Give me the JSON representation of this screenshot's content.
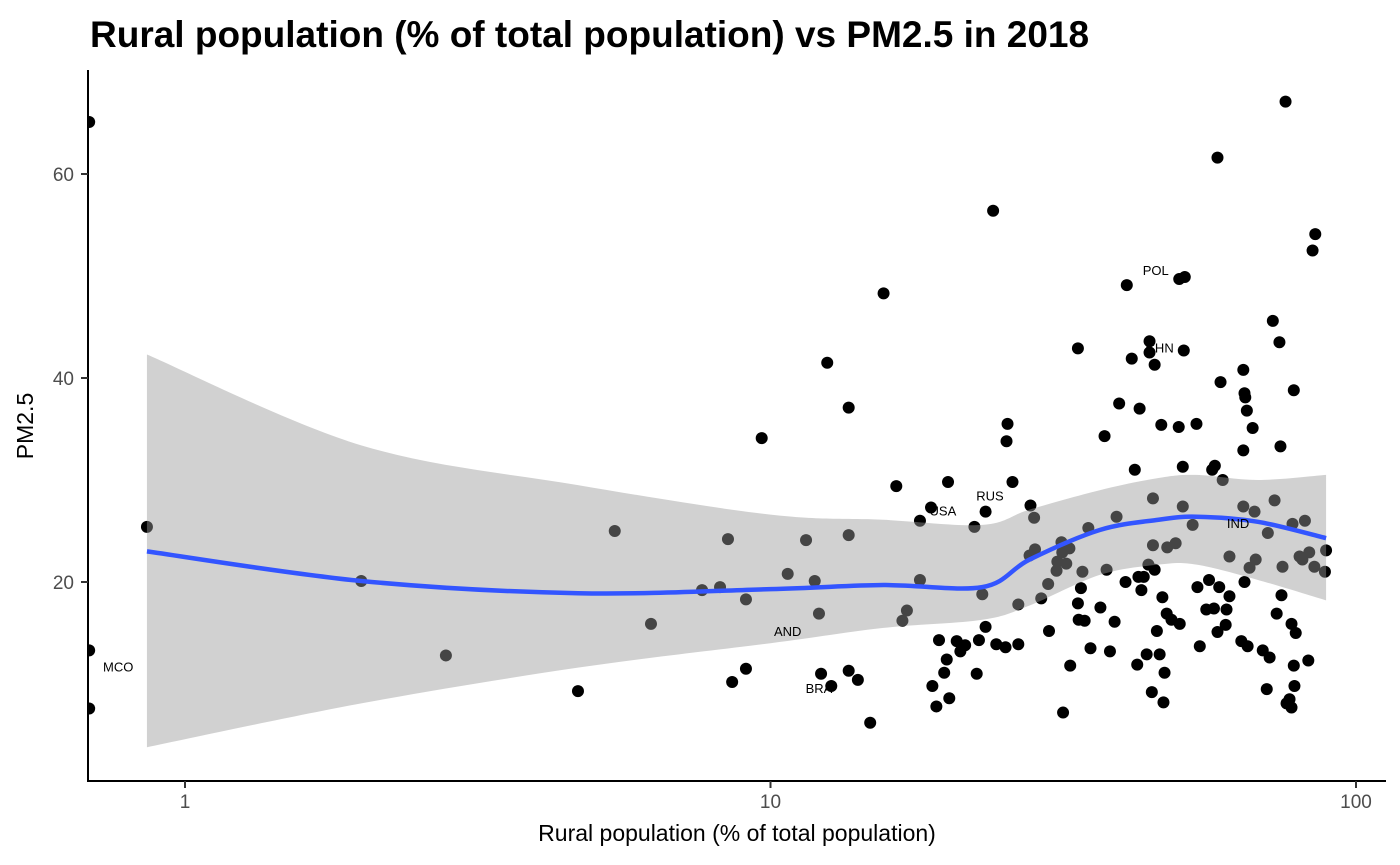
{
  "chart_data": {
    "type": "scatter",
    "title": "Rural population (% of total population) vs PM2.5 in 2018",
    "xlabel": "Rural population (% of total population)",
    "ylabel": "PM2.5",
    "x_scale": "log10",
    "xlim": [
      0.686,
      105
    ],
    "ylim": [
      0.5,
      70
    ],
    "x_ticks": [
      {
        "value": 1,
        "label": "1"
      },
      {
        "value": 10,
        "label": "10"
      },
      {
        "value": 100,
        "label": "100"
      }
    ],
    "y_ticks": [
      {
        "value": 20,
        "label": "20"
      },
      {
        "value": 40,
        "label": "40"
      },
      {
        "value": 60,
        "label": "60"
      }
    ],
    "grid": false,
    "colors": {
      "points": "#000000",
      "smooth_line": "#3355ff",
      "ribbon": "#999999"
    },
    "points": [
      [
        0.686,
        65.1
      ],
      [
        0.686,
        13.3
      ],
      [
        0.686,
        7.6
      ],
      [
        0.861,
        25.4
      ],
      [
        2.0,
        20.1
      ],
      [
        2.79,
        12.8
      ],
      [
        4.69,
        9.3
      ],
      [
        5.42,
        25.0
      ],
      [
        6.25,
        15.9
      ],
      [
        7.64,
        19.2
      ],
      [
        8.2,
        19.5
      ],
      [
        8.46,
        24.2
      ],
      [
        8.6,
        10.2
      ],
      [
        9.08,
        18.3
      ],
      [
        9.08,
        11.5
      ],
      [
        9.66,
        34.1
      ],
      [
        10.7,
        20.8
      ],
      [
        11.5,
        24.1
      ],
      [
        11.9,
        20.1
      ],
      [
        12.1,
        16.9
      ],
      [
        12.2,
        11.0
      ],
      [
        12.5,
        41.5
      ],
      [
        12.7,
        9.8
      ],
      [
        13.6,
        37.1
      ],
      [
        13.6,
        24.6
      ],
      [
        13.6,
        11.3
      ],
      [
        14.1,
        10.4
      ],
      [
        14.8,
        6.2
      ],
      [
        15.6,
        48.3
      ],
      [
        16.4,
        29.4
      ],
      [
        16.8,
        16.2
      ],
      [
        17.1,
        17.2
      ],
      [
        18.0,
        26.0
      ],
      [
        18.0,
        20.2
      ],
      [
        18.8,
        27.3
      ],
      [
        18.9,
        9.8
      ],
      [
        19.2,
        7.8
      ],
      [
        19.4,
        14.3
      ],
      [
        19.8,
        11.1
      ],
      [
        20.0,
        12.4
      ],
      [
        20.1,
        29.8
      ],
      [
        20.2,
        8.6
      ],
      [
        20.8,
        14.2
      ],
      [
        21.1,
        13.2
      ],
      [
        21.5,
        13.8
      ],
      [
        22.3,
        25.4
      ],
      [
        22.5,
        11.0
      ],
      [
        22.7,
        14.3
      ],
      [
        23.0,
        18.8
      ],
      [
        23.3,
        26.9
      ],
      [
        23.3,
        15.6
      ],
      [
        24.0,
        56.4
      ],
      [
        24.3,
        13.9
      ],
      [
        25.2,
        13.6
      ],
      [
        25.4,
        35.5
      ],
      [
        25.3,
        33.8
      ],
      [
        25.9,
        29.8
      ],
      [
        26.5,
        13.9
      ],
      [
        26.5,
        17.8
      ],
      [
        27.7,
        22.6
      ],
      [
        27.8,
        27.5
      ],
      [
        28.2,
        26.3
      ],
      [
        28.3,
        23.2
      ],
      [
        29.0,
        18.4
      ],
      [
        29.9,
        15.2
      ],
      [
        29.8,
        19.8
      ],
      [
        30.9,
        22.0
      ],
      [
        30.8,
        21.1
      ],
      [
        31.4,
        23.9
      ],
      [
        31.5,
        22.9
      ],
      [
        31.6,
        7.2
      ],
      [
        32.0,
        21.8
      ],
      [
        32.4,
        23.3
      ],
      [
        32.5,
        11.8
      ],
      [
        33.5,
        42.9
      ],
      [
        33.5,
        17.9
      ],
      [
        33.6,
        16.3
      ],
      [
        33.9,
        19.4
      ],
      [
        34.1,
        21.0
      ],
      [
        34.4,
        16.2
      ],
      [
        34.9,
        25.3
      ],
      [
        35.2,
        13.5
      ],
      [
        36.6,
        17.5
      ],
      [
        37.2,
        34.3
      ],
      [
        37.5,
        21.2
      ],
      [
        38.0,
        13.2
      ],
      [
        38.7,
        16.1
      ],
      [
        39.0,
        26.4
      ],
      [
        39.4,
        37.5
      ],
      [
        40.4,
        20.0
      ],
      [
        40.6,
        49.1
      ],
      [
        41.4,
        41.9
      ],
      [
        41.9,
        31.0
      ],
      [
        42.3,
        11.9
      ],
      [
        42.7,
        37.0
      ],
      [
        42.5,
        20.5
      ],
      [
        43.0,
        19.2
      ],
      [
        43.4,
        20.5
      ],
      [
        43.9,
        12.9
      ],
      [
        44.2,
        21.7
      ],
      [
        44.4,
        42.5
      ],
      [
        44.4,
        43.6
      ],
      [
        44.8,
        9.2
      ],
      [
        45.0,
        23.6
      ],
      [
        45.0,
        28.2
      ],
      [
        45.3,
        21.2
      ],
      [
        45.3,
        41.3
      ],
      [
        45.7,
        15.2
      ],
      [
        46.2,
        12.9
      ],
      [
        46.5,
        35.4
      ],
      [
        46.7,
        18.5
      ],
      [
        46.9,
        8.2
      ],
      [
        47.1,
        11.1
      ],
      [
        47.5,
        16.9
      ],
      [
        47.6,
        23.4
      ],
      [
        48.4,
        16.3
      ],
      [
        49.2,
        23.8
      ],
      [
        49.8,
        35.2
      ],
      [
        50.0,
        15.9
      ],
      [
        49.9,
        49.7
      ],
      [
        50.6,
        31.3
      ],
      [
        50.6,
        27.4
      ],
      [
        51.0,
        49.9
      ],
      [
        50.8,
        42.7
      ],
      [
        52.6,
        25.6
      ],
      [
        53.4,
        35.5
      ],
      [
        53.6,
        19.5
      ],
      [
        54.1,
        13.7
      ],
      [
        55.5,
        17.3
      ],
      [
        56.1,
        20.2
      ],
      [
        56.8,
        31.0
      ],
      [
        57.2,
        17.4
      ],
      [
        57.4,
        31.4
      ],
      [
        58.0,
        61.6
      ],
      [
        58.0,
        15.1
      ],
      [
        58.4,
        19.5
      ],
      [
        58.7,
        39.6
      ],
      [
        59.2,
        30.0
      ],
      [
        59.9,
        15.8
      ],
      [
        60.1,
        17.3
      ],
      [
        60.8,
        18.6
      ],
      [
        60.8,
        22.5
      ],
      [
        63.7,
        14.2
      ],
      [
        64.2,
        40.8
      ],
      [
        64.2,
        32.9
      ],
      [
        64.2,
        27.4
      ],
      [
        64.5,
        20.0
      ],
      [
        64.5,
        38.5
      ],
      [
        64.7,
        38.1
      ],
      [
        65.1,
        36.8
      ],
      [
        65.3,
        13.7
      ],
      [
        65.8,
        21.4
      ],
      [
        66.6,
        35.1
      ],
      [
        67.1,
        26.9
      ],
      [
        67.4,
        22.2
      ],
      [
        69.3,
        13.3
      ],
      [
        70.4,
        9.5
      ],
      [
        70.7,
        24.8
      ],
      [
        71.2,
        12.6
      ],
      [
        72.1,
        45.6
      ],
      [
        72.6,
        28.0
      ],
      [
        73.2,
        16.9
      ],
      [
        74.0,
        43.5
      ],
      [
        74.3,
        33.3
      ],
      [
        74.6,
        18.7
      ],
      [
        74.9,
        21.5
      ],
      [
        75.8,
        67.1
      ],
      [
        76.1,
        8.1
      ],
      [
        77.0,
        8.5
      ],
      [
        77.6,
        7.7
      ],
      [
        77.6,
        15.9
      ],
      [
        77.9,
        25.7
      ],
      [
        78.3,
        38.8
      ],
      [
        78.3,
        11.8
      ],
      [
        78.5,
        9.8
      ],
      [
        78.9,
        15.0
      ],
      [
        80.1,
        22.5
      ],
      [
        81.0,
        22.2
      ],
      [
        81.8,
        26.0
      ],
      [
        82.9,
        12.3
      ],
      [
        83.2,
        22.9
      ],
      [
        84.3,
        52.5
      ],
      [
        84.9,
        21.5
      ],
      [
        85.2,
        54.1
      ],
      [
        88.9,
        23.1
      ],
      [
        88.5,
        21.0
      ]
    ],
    "smooth": {
      "x": [
        0.861,
        2.0,
        4.69,
        10,
        15.6,
        23,
        27.7,
        36.5,
        46,
        53.4,
        68,
        88.9
      ],
      "y": [
        23.0,
        20.1,
        18.9,
        19.3,
        19.7,
        19.5,
        22.2,
        25.1,
        26.1,
        26.4,
        25.9,
        24.3
      ],
      "upper": [
        42.3,
        33.4,
        29.5,
        26.6,
        26.1,
        25.6,
        27.1,
        29.0,
        30.2,
        30.5,
        30.0,
        30.5
      ],
      "lower": [
        3.8,
        8.1,
        11.6,
        14.0,
        15.5,
        16.3,
        17.7,
        20.7,
        21.7,
        21.7,
        20.2,
        18.2
      ]
    },
    "labels": [
      {
        "text": "MCO",
        "x": 0.769,
        "y": 11.7
      },
      {
        "text": "AND",
        "x": 10.7,
        "y": 15.2
      },
      {
        "text": "BRA",
        "x": 12.1,
        "y": 9.6
      },
      {
        "text": "USA",
        "x": 19.7,
        "y": 27.0
      },
      {
        "text": "RUS",
        "x": 23.7,
        "y": 28.5
      },
      {
        "text": "POL",
        "x": 45.5,
        "y": 50.6
      },
      {
        "text": "CHN",
        "x": 46.2,
        "y": 43.0
      },
      {
        "text": "IND",
        "x": 62.9,
        "y": 25.8
      }
    ]
  }
}
